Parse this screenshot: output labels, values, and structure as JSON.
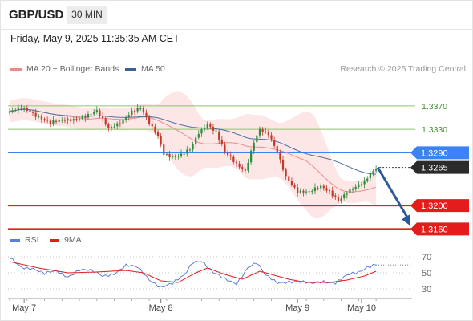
{
  "header": {
    "pair": "GBP/USD",
    "timeframe": "30 MIN",
    "datetime": "Friday, May 9, 2025 11:35:35 AM CET",
    "credit": "Research © 2025 Trading Central"
  },
  "colors": {
    "up": "#2e8b3d",
    "down": "#c0392b",
    "bollinger": "#fde2e2",
    "ma20": "#f08a8a",
    "ma50": "#4a6fa5",
    "support": "#e41c1c",
    "resistance": "#8cc56e",
    "pivot": "#3b82f6",
    "rsi": "#5b7fd6",
    "ma9": "#e41c1c",
    "arrow": "#2a5a9a"
  },
  "chart_data": [
    {
      "type": "candlestick",
      "legend": [
        {
          "label": "MA 20 + Bollinger Bands",
          "color": "#f08a8a"
        },
        {
          "label": "MA 50",
          "color": "#4a6fa5"
        }
      ],
      "x_ticks": [
        "May 7",
        "May 8",
        "May 9",
        "May 10"
      ],
      "x_tick_index": [
        5,
        52,
        99,
        121
      ],
      "n_bars": 130,
      "ylim": [
        1.314,
        1.34
      ],
      "price_levels": [
        {
          "label": "1.3370",
          "value": 1.337,
          "kind": "resistance"
        },
        {
          "label": "1.3330",
          "value": 1.333,
          "kind": "resistance"
        },
        {
          "label": "1.3290",
          "value": 1.329,
          "kind": "pivot"
        },
        {
          "label": "1.3265",
          "value": 1.3265,
          "kind": "current"
        },
        {
          "label": "1.3200",
          "value": 1.32,
          "kind": "support"
        },
        {
          "label": "1.3160",
          "value": 1.316,
          "kind": "support"
        }
      ],
      "close_anchors": [
        [
          0,
          1.3358
        ],
        [
          4,
          1.3367
        ],
        [
          7,
          1.3362
        ],
        [
          9,
          1.3355
        ],
        [
          14,
          1.334
        ],
        [
          18,
          1.3345
        ],
        [
          22,
          1.3348
        ],
        [
          26,
          1.3352
        ],
        [
          30,
          1.336
        ],
        [
          34,
          1.3332
        ],
        [
          38,
          1.3343
        ],
        [
          42,
          1.336
        ],
        [
          45,
          1.3365
        ],
        [
          48,
          1.334
        ],
        [
          51,
          1.332
        ],
        [
          53,
          1.329
        ],
        [
          56,
          1.3283
        ],
        [
          59,
          1.3285
        ],
        [
          62,
          1.3295
        ],
        [
          65,
          1.3325
        ],
        [
          68,
          1.334
        ],
        [
          71,
          1.3325
        ],
        [
          74,
          1.329
        ],
        [
          78,
          1.327
        ],
        [
          81,
          1.326
        ],
        [
          84,
          1.331
        ],
        [
          86,
          1.333
        ],
        [
          89,
          1.332
        ],
        [
          92,
          1.329
        ],
        [
          95,
          1.325
        ],
        [
          99,
          1.3225
        ],
        [
          103,
          1.3222
        ],
        [
          107,
          1.3232
        ],
        [
          110,
          1.3225
        ],
        [
          113,
          1.321
        ],
        [
          116,
          1.3222
        ],
        [
          119,
          1.323
        ],
        [
          122,
          1.324
        ],
        [
          124,
          1.3255
        ],
        [
          126,
          1.3265
        ]
      ],
      "projection": {
        "from": 1.3265,
        "to": 1.316
      }
    },
    {
      "type": "line",
      "legend": [
        {
          "label": "RSI",
          "color": "#5b7fd6"
        },
        {
          "label": "9MA",
          "color": "#e41c1c"
        }
      ],
      "y_ticks": [
        70,
        50,
        30
      ],
      "ylim": [
        20,
        80
      ],
      "rsi_anchors": [
        [
          0,
          68
        ],
        [
          4,
          58
        ],
        [
          8,
          56
        ],
        [
          12,
          48
        ],
        [
          16,
          52
        ],
        [
          20,
          46
        ],
        [
          24,
          54
        ],
        [
          28,
          52
        ],
        [
          32,
          46
        ],
        [
          36,
          50
        ],
        [
          40,
          59
        ],
        [
          44,
          56
        ],
        [
          48,
          42
        ],
        [
          52,
          33
        ],
        [
          56,
          36
        ],
        [
          60,
          46
        ],
        [
          63,
          64
        ],
        [
          66,
          66
        ],
        [
          70,
          50
        ],
        [
          74,
          41
        ],
        [
          78,
          37
        ],
        [
          82,
          58
        ],
        [
          85,
          62
        ],
        [
          88,
          46
        ],
        [
          92,
          38
        ],
        [
          96,
          40
        ],
        [
          100,
          38
        ],
        [
          104,
          36
        ],
        [
          108,
          40
        ],
        [
          112,
          38
        ],
        [
          116,
          46
        ],
        [
          120,
          50
        ],
        [
          123,
          58
        ],
        [
          126,
          62
        ]
      ],
      "ma9_anchors": [
        [
          0,
          64
        ],
        [
          10,
          56
        ],
        [
          20,
          50
        ],
        [
          30,
          51
        ],
        [
          40,
          53
        ],
        [
          46,
          50
        ],
        [
          52,
          40
        ],
        [
          58,
          38
        ],
        [
          64,
          50
        ],
        [
          68,
          56
        ],
        [
          74,
          48
        ],
        [
          80,
          42
        ],
        [
          86,
          52
        ],
        [
          90,
          48
        ],
        [
          96,
          42
        ],
        [
          102,
          38
        ],
        [
          110,
          38
        ],
        [
          116,
          41
        ],
        [
          122,
          46
        ],
        [
          126,
          52
        ]
      ]
    }
  ]
}
